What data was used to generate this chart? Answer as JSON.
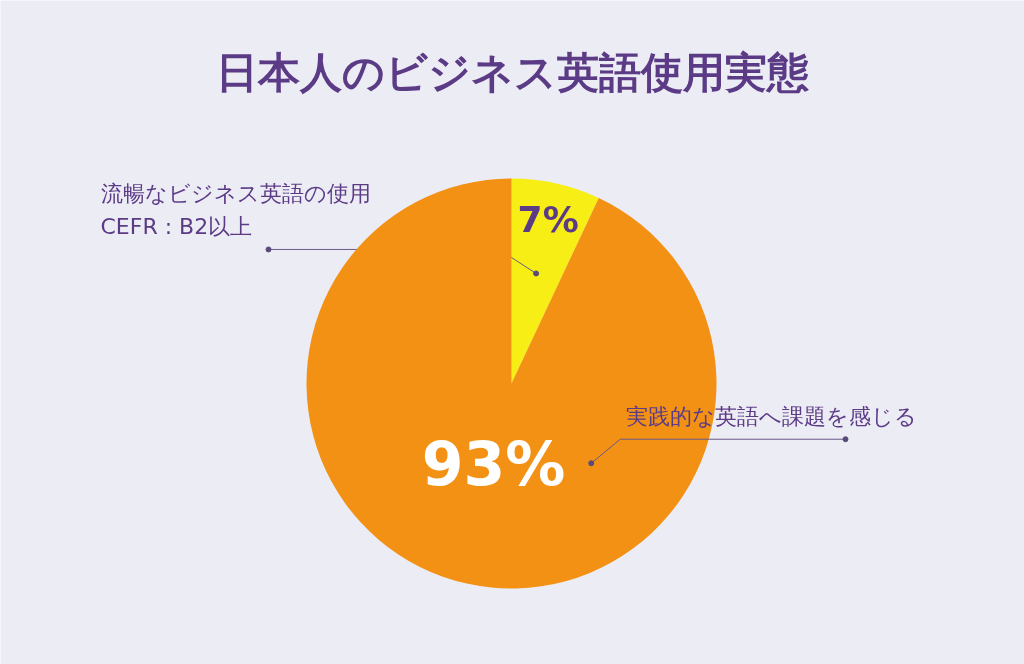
{
  "chart_data": {
    "type": "pie",
    "title": "日本人のビジネス英語使用実態",
    "categories": [
      "流暢なビジネス英語の使用\nCEFR : B2以上",
      "実践的な英語へ課題を感じる"
    ],
    "values": [
      7,
      93
    ],
    "colors": [
      "#f7ee16",
      "#f29114"
    ],
    "value_labels": [
      "7%",
      "93%"
    ]
  }
}
